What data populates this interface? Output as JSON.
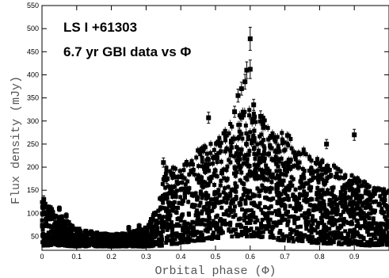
{
  "chart_data": {
    "type": "scatter",
    "title_lines": [
      "LS I +61303",
      "6.7 yr GBI data  vs  Φ"
    ],
    "xlabel": "Orbital  phase (Φ)",
    "ylabel": "Flux density (mJy)",
    "xlim": [
      0,
      1
    ],
    "ylim": [
      20,
      550
    ],
    "x_ticks": [
      "0",
      "0.1",
      "0.2",
      "0.3",
      "0.4",
      "0.5",
      "0.6",
      "0.7",
      "0.8",
      "0.9"
    ],
    "y_ticks": [
      "50",
      "100",
      "150",
      "200",
      "250",
      "300",
      "350",
      "400",
      "450",
      "500",
      "550"
    ],
    "grid": false,
    "marker": "filled-square-with-errorbars",
    "envelope": {
      "phase": [
        0.0,
        0.03,
        0.06,
        0.1,
        0.15,
        0.2,
        0.25,
        0.3,
        0.33,
        0.36,
        0.4,
        0.45,
        0.5,
        0.55,
        0.58,
        0.62,
        0.66,
        0.7,
        0.75,
        0.8,
        0.85,
        0.9,
        0.95,
        1.0
      ],
      "upper_mJy": [
        135,
        110,
        92,
        68,
        60,
        55,
        58,
        70,
        110,
        210,
        200,
        240,
        260,
        300,
        330,
        320,
        300,
        280,
        240,
        220,
        200,
        180,
        160,
        150
      ],
      "lower_mJy": [
        30,
        30,
        30,
        28,
        28,
        28,
        28,
        28,
        28,
        30,
        35,
        40,
        45,
        50,
        50,
        50,
        45,
        40,
        38,
        35,
        33,
        32,
        30,
        30
      ]
    },
    "highlighted_points": [
      {
        "x": 0.005,
        "y": 130,
        "err": 8
      },
      {
        "x": 0.35,
        "y": 210,
        "err": 10
      },
      {
        "x": 0.36,
        "y": 175,
        "err": 10
      },
      {
        "x": 0.48,
        "y": 307,
        "err": 12
      },
      {
        "x": 0.555,
        "y": 320,
        "err": 12
      },
      {
        "x": 0.565,
        "y": 355,
        "err": 14
      },
      {
        "x": 0.575,
        "y": 370,
        "err": 14
      },
      {
        "x": 0.585,
        "y": 385,
        "err": 16
      },
      {
        "x": 0.59,
        "y": 410,
        "err": 18
      },
      {
        "x": 0.6,
        "y": 412,
        "err": 20
      },
      {
        "x": 0.6,
        "y": 478,
        "err": 25
      },
      {
        "x": 0.61,
        "y": 335,
        "err": 12
      },
      {
        "x": 0.63,
        "y": 310,
        "err": 12
      },
      {
        "x": 0.82,
        "y": 250,
        "err": 10
      },
      {
        "x": 0.9,
        "y": 270,
        "err": 12
      },
      {
        "x": 0.25,
        "y": 68,
        "err": 6
      },
      {
        "x": 0.28,
        "y": 72,
        "err": 6
      },
      {
        "x": 0.07,
        "y": 95,
        "err": 6
      },
      {
        "x": 0.05,
        "y": 110,
        "err": 6
      }
    ]
  }
}
